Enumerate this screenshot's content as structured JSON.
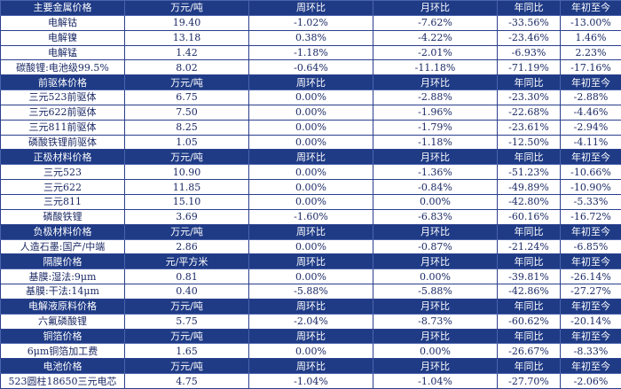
{
  "colors": {
    "header_bg": "#1f3b86",
    "header_text": "#ffffff",
    "negative": "#e03a3a",
    "neutral": "#1c2a66",
    "border": "#2a3f8e"
  },
  "sections": [
    {
      "header": [
        "主要金属价格",
        "万元/吨",
        "周环比",
        "月环比",
        "年同比",
        "年初至今"
      ],
      "rows": [
        {
          "cells": [
            "电解钴",
            "19.40",
            "-1.02%",
            "-7.62%",
            "-33.56%",
            "-13.00%"
          ]
        },
        {
          "cells": [
            "电解镍",
            "13.18",
            "0.38%",
            "-4.22%",
            "-23.46%",
            "1.46%"
          ]
        },
        {
          "cells": [
            "电解锰",
            "1.42",
            "-1.18%",
            "-2.01%",
            "-6.93%",
            "2.23%"
          ]
        },
        {
          "cells": [
            "碳酸锂:电池级99.5%",
            "8.02",
            "-0.64%",
            "-11.18%",
            "-71.19%",
            "-17.16%"
          ]
        }
      ]
    },
    {
      "header": [
        "前驱体价格",
        "万元/吨",
        "周环比",
        "月环比",
        "年同比",
        "年初至今"
      ],
      "rows": [
        {
          "cells": [
            "三元523前驱体",
            "6.75",
            "0.00%",
            "-2.88%",
            "-23.30%",
            "-2.88%"
          ]
        },
        {
          "cells": [
            "三元622前驱体",
            "7.50",
            "0.00%",
            "-1.96%",
            "-22.68%",
            "-4.46%"
          ]
        },
        {
          "cells": [
            "三元811前驱体",
            "8.25",
            "0.00%",
            "-1.79%",
            "-23.61%",
            "-2.94%"
          ]
        },
        {
          "cells": [
            "磷酸铁锂前驱体",
            "1.05",
            "0.00%",
            "-1.18%",
            "-12.50%",
            "-4.11%"
          ]
        }
      ]
    },
    {
      "header": [
        "正极材料价格",
        "万元/吨",
        "周环比",
        "月环比",
        "年同比",
        "年初至今"
      ],
      "rows": [
        {
          "cells": [
            "三元523",
            "10.90",
            "0.00%",
            "-1.36%",
            "-51.23%",
            "-10.66%"
          ]
        },
        {
          "cells": [
            "三元622",
            "11.85",
            "0.00%",
            "-0.84%",
            "-49.89%",
            "-10.90%"
          ]
        },
        {
          "cells": [
            "三元811",
            "15.10",
            "0.00%",
            "0.00%",
            "-42.80%",
            "-5.33%"
          ]
        },
        {
          "cells": [
            "磷酸铁锂",
            "3.69",
            "-1.60%",
            "-6.83%",
            "-60.16%",
            "-16.72%"
          ]
        }
      ]
    },
    {
      "header": [
        "负极材料价格",
        "万元/吨",
        "周环比",
        "月环比",
        "年同比",
        "年初至今"
      ],
      "rows": [
        {
          "cells": [
            "人造石墨:国产/中端",
            "2.86",
            "0.00%",
            "-0.87%",
            "-21.24%",
            "-6.85%"
          ]
        }
      ]
    },
    {
      "header": [
        "隔膜价格",
        "元/平方米",
        "周环比",
        "月环比",
        "年同比",
        "年初至今"
      ],
      "rows": [
        {
          "cells": [
            "基膜:湿法:9μm",
            "0.81",
            "0.00%",
            "0.00%",
            "-39.81%",
            "-26.14%"
          ]
        },
        {
          "cells": [
            "基膜:干法:14μm",
            "0.40",
            "-5.88%",
            "-5.88%",
            "-42.86%",
            "-27.27%"
          ]
        }
      ]
    },
    {
      "header": [
        "电解液原料价格",
        "万元/吨",
        "周环比",
        "月环比",
        "年同比",
        "年初至今"
      ],
      "rows": [
        {
          "cells": [
            "六氟磷酸锂",
            "5.75",
            "-2.04%",
            "-8.73%",
            "-60.62%",
            "-20.14%"
          ]
        }
      ]
    },
    {
      "header": [
        "铜箔价格",
        "万元/吨",
        "周环比",
        "月环比",
        "年同比",
        "年初至今"
      ],
      "rows": [
        {
          "cells": [
            "6μm铜箔加工费",
            "1.65",
            "0.00%",
            "0.00%",
            "-26.67%",
            "-8.33%"
          ]
        }
      ]
    },
    {
      "header": [
        "电池价格",
        "万元/吨",
        "周环比",
        "月环比",
        "年同比",
        "年初至今"
      ],
      "rows": [
        {
          "cells": [
            "523圆柱18650三元电芯",
            "4.75",
            "-1.04%",
            "-1.04%",
            "-27.70%",
            "-2.06%"
          ]
        }
      ]
    }
  ]
}
